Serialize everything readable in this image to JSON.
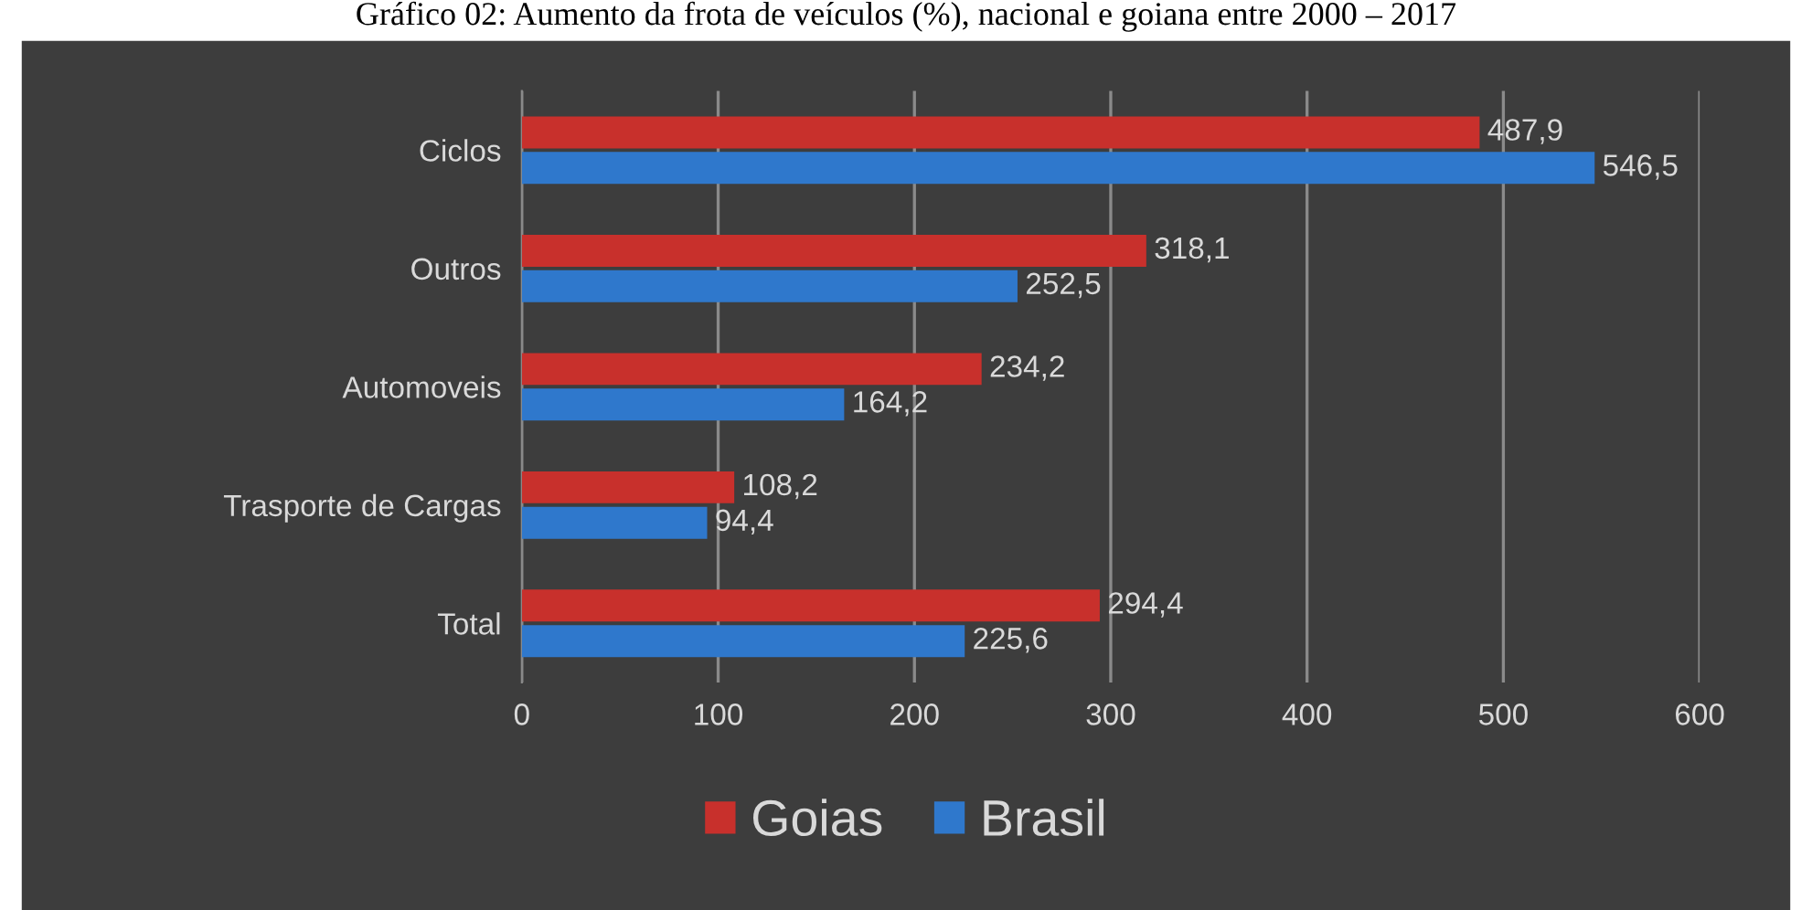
{
  "chart_data": {
    "type": "bar",
    "orientation": "horizontal",
    "title": "Gráfico 02: Aumento da frota de veículos (%), nacional e goiana entre 2000 – 2017",
    "categories": [
      "Ciclos",
      "Outros",
      "Automoveis",
      "Trasporte de Cargas",
      "Total"
    ],
    "series": [
      {
        "name": "Goias",
        "color": "#c8302c",
        "values": [
          487.9,
          318.1,
          234.2,
          108.2,
          294.4
        ],
        "value_labels": [
          "487,9",
          "318,1",
          "234,2",
          "108,2",
          "294,4"
        ]
      },
      {
        "name": "Brasil",
        "color": "#2f78cc",
        "values": [
          546.5,
          252.5,
          164.2,
          94.4,
          225.6
        ],
        "value_labels": [
          "546,5",
          "252,5",
          "164,2",
          "94,4",
          "225,6"
        ]
      }
    ],
    "xlim": [
      0,
      600
    ],
    "xticks": [
      0,
      100,
      200,
      300,
      400,
      500,
      600
    ],
    "grid": "x",
    "legend": "bottom"
  }
}
